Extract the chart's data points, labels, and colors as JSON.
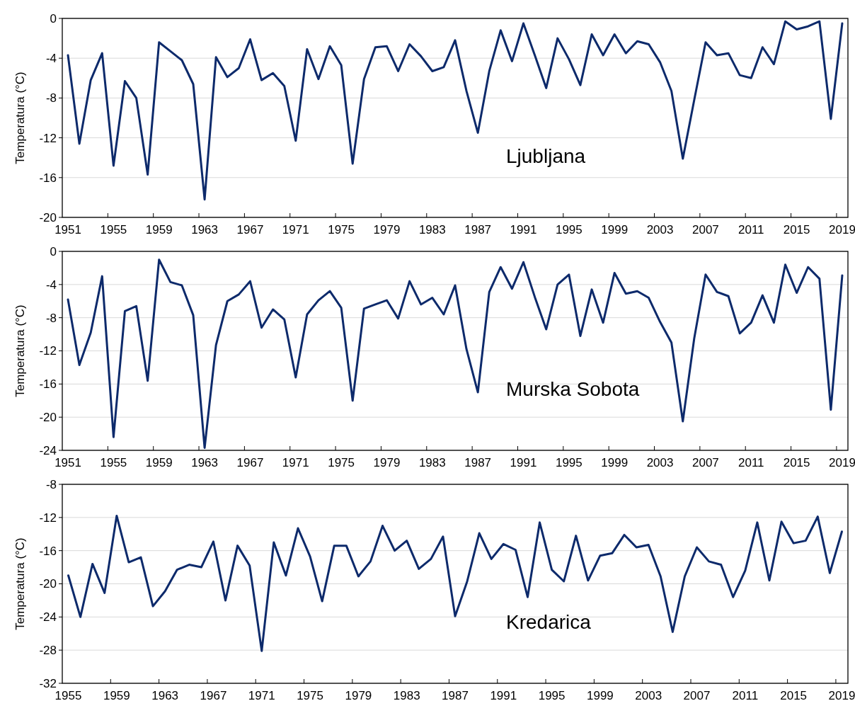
{
  "chart_data": [
    {
      "type": "line",
      "ylabel": "Temperatura (°C)",
      "annotations": [
        "Ljubljana"
      ],
      "grid": "y",
      "ylim": [
        -20,
        0
      ],
      "yticks": [
        -20,
        -16,
        -12,
        -8,
        -4,
        0
      ],
      "categories": [
        "1951",
        null,
        null,
        null,
        "1955",
        null,
        null,
        null,
        "1959",
        null,
        null,
        null,
        "1963",
        null,
        null,
        null,
        "1967",
        null,
        null,
        null,
        "1971",
        null,
        null,
        null,
        "1975",
        null,
        null,
        null,
        "1979",
        null,
        null,
        null,
        "1983",
        null,
        null,
        null,
        "1987",
        null,
        null,
        null,
        "1991",
        null,
        null,
        null,
        "1995",
        null,
        null,
        null,
        "1999",
        null,
        null,
        null,
        "2003",
        null,
        null,
        null,
        "2007",
        null,
        null,
        null,
        "2011",
        null,
        null,
        null,
        "2015",
        null,
        null,
        null,
        "2019"
      ],
      "series": [
        {
          "color": "#0d2a6b",
          "values": [
            -3.7,
            -12.6,
            -6.2,
            -3.5,
            -14.8,
            -6.3,
            -8.0,
            -15.7,
            -2.4,
            -3.3,
            -4.2,
            -6.6,
            -18.2,
            -3.9,
            -5.9,
            -5.0,
            -2.1,
            -6.2,
            -5.5,
            -6.8,
            -12.3,
            -3.1,
            -6.1,
            -2.8,
            -4.7,
            -14.6,
            -6.1,
            -2.9,
            -2.8,
            -5.3,
            -2.6,
            -3.8,
            -5.3,
            -4.9,
            -2.2,
            -7.3,
            -11.5,
            -5.3,
            -1.2,
            -4.3,
            -0.5,
            -3.7,
            -7.0,
            -2.0,
            -4.1,
            -6.7,
            -1.6,
            -3.7,
            -1.6,
            -3.5,
            -2.3,
            -2.6,
            -4.4,
            -7.3,
            -14.1,
            -8.2,
            -2.4,
            -3.7,
            -3.5,
            -5.7,
            -6.0,
            -2.9,
            -4.6,
            -0.3,
            -1.1,
            -0.8,
            -0.3,
            -10.1,
            -0.5
          ]
        }
      ]
    },
    {
      "type": "line",
      "ylabel": "Temperatura (°C)",
      "annotations": [
        "Murska Sobota"
      ],
      "grid": "y",
      "ylim": [
        -24,
        0
      ],
      "yticks": [
        -24,
        -20,
        -16,
        -12,
        -8,
        -4,
        0
      ],
      "categories": [
        "1951",
        null,
        null,
        null,
        "1955",
        null,
        null,
        null,
        "1959",
        null,
        null,
        null,
        "1963",
        null,
        null,
        null,
        "1967",
        null,
        null,
        null,
        "1971",
        null,
        null,
        null,
        "1975",
        null,
        null,
        null,
        "1979",
        null,
        null,
        null,
        "1983",
        null,
        null,
        null,
        "1987",
        null,
        null,
        null,
        "1991",
        null,
        null,
        null,
        "1995",
        null,
        null,
        null,
        "1999",
        null,
        null,
        null,
        "2003",
        null,
        null,
        null,
        "2007",
        null,
        null,
        null,
        "2011",
        null,
        null,
        null,
        "2015",
        null,
        null,
        null,
        "2019"
      ],
      "series": [
        {
          "color": "#0d2a6b",
          "values": [
            -5.8,
            -13.7,
            -9.8,
            -3.0,
            -22.4,
            -7.2,
            -6.6,
            -15.6,
            -1.0,
            -3.7,
            -4.1,
            -7.7,
            -23.7,
            -11.3,
            -6.0,
            -5.2,
            -3.6,
            -9.2,
            -7.0,
            -8.2,
            -15.2,
            -7.6,
            -5.9,
            -4.8,
            -6.8,
            -18.0,
            -6.9,
            -6.4,
            -5.9,
            -8.1,
            -3.6,
            -6.4,
            -5.6,
            -7.6,
            -4.1,
            -11.8,
            -17.0,
            -4.9,
            -1.9,
            -4.5,
            -1.3,
            -5.5,
            -9.4,
            -4.0,
            -2.8,
            -10.2,
            -4.6,
            -8.6,
            -2.6,
            -5.1,
            -4.8,
            -5.6,
            -8.5,
            -11.0,
            -20.5,
            -10.5,
            -2.8,
            -4.9,
            -5.4,
            -9.9,
            -8.6,
            -5.3,
            -8.6,
            -1.6,
            -5.0,
            -1.9,
            -3.3,
            -19.1,
            -2.9
          ]
        }
      ]
    },
    {
      "type": "line",
      "ylabel": "Temperatura (°C)",
      "annotations": [
        "Kredarica"
      ],
      "grid": "y",
      "ylim": [
        -32,
        -8
      ],
      "yticks": [
        -32,
        -28,
        -24,
        -20,
        -16,
        -12,
        -8
      ],
      "categories": [
        "1955",
        null,
        null,
        null,
        "1959",
        null,
        null,
        null,
        "1963",
        null,
        null,
        null,
        "1967",
        null,
        null,
        null,
        "1971",
        null,
        null,
        null,
        "1975",
        null,
        null,
        null,
        "1979",
        null,
        null,
        null,
        "1983",
        null,
        null,
        null,
        "1987",
        null,
        null,
        null,
        "1991",
        null,
        null,
        null,
        "1995",
        null,
        null,
        null,
        "1999",
        null,
        null,
        null,
        "2003",
        null,
        null,
        null,
        "2007",
        null,
        null,
        null,
        "2011",
        null,
        null,
        null,
        "2015",
        null,
        null,
        null,
        "2019"
      ],
      "series": [
        {
          "color": "#0d2a6b",
          "values": [
            -19.0,
            -24.0,
            -17.6,
            -21.1,
            -11.8,
            -17.4,
            -16.8,
            -22.7,
            -20.9,
            -18.3,
            -17.7,
            -18.0,
            -14.9,
            -22.0,
            -15.4,
            -17.8,
            -28.1,
            -15.0,
            -19.0,
            -13.3,
            -16.7,
            -22.1,
            -15.4,
            -15.4,
            -19.1,
            -17.3,
            -13.0,
            -16.0,
            -14.8,
            -18.2,
            -17.0,
            -14.3,
            -23.9,
            -19.7,
            -13.9,
            -17.0,
            -15.2,
            -15.9,
            -21.6,
            -12.6,
            -18.3,
            -19.7,
            -14.2,
            -19.6,
            -16.6,
            -16.3,
            -14.1,
            -15.6,
            -15.3,
            -19.1,
            -25.8,
            -19.1,
            -15.6,
            -17.3,
            -17.7,
            -21.6,
            -18.4,
            -12.6,
            -19.6,
            -12.5,
            -15.1,
            -14.8,
            -11.9,
            -18.7,
            -13.7
          ]
        }
      ]
    }
  ]
}
